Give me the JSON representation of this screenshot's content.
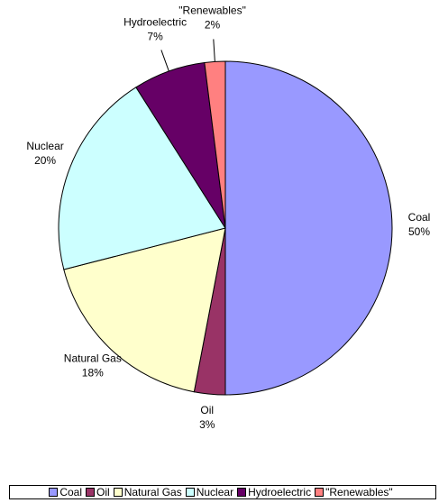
{
  "chart_data": {
    "type": "pie",
    "categories": [
      "Coal",
      "Oil",
      "Natural Gas",
      "Nuclear",
      "Hydroelectric",
      "\"Renewables\""
    ],
    "values": [
      50,
      3,
      18,
      20,
      7,
      2
    ],
    "value_labels": [
      "50%",
      "3%",
      "18%",
      "20%",
      "7%",
      "2%"
    ],
    "colors": [
      "#9999ff",
      "#993366",
      "#ffffcc",
      "#ccffff",
      "#660066",
      "#ff8080"
    ],
    "legend": "bottom"
  }
}
